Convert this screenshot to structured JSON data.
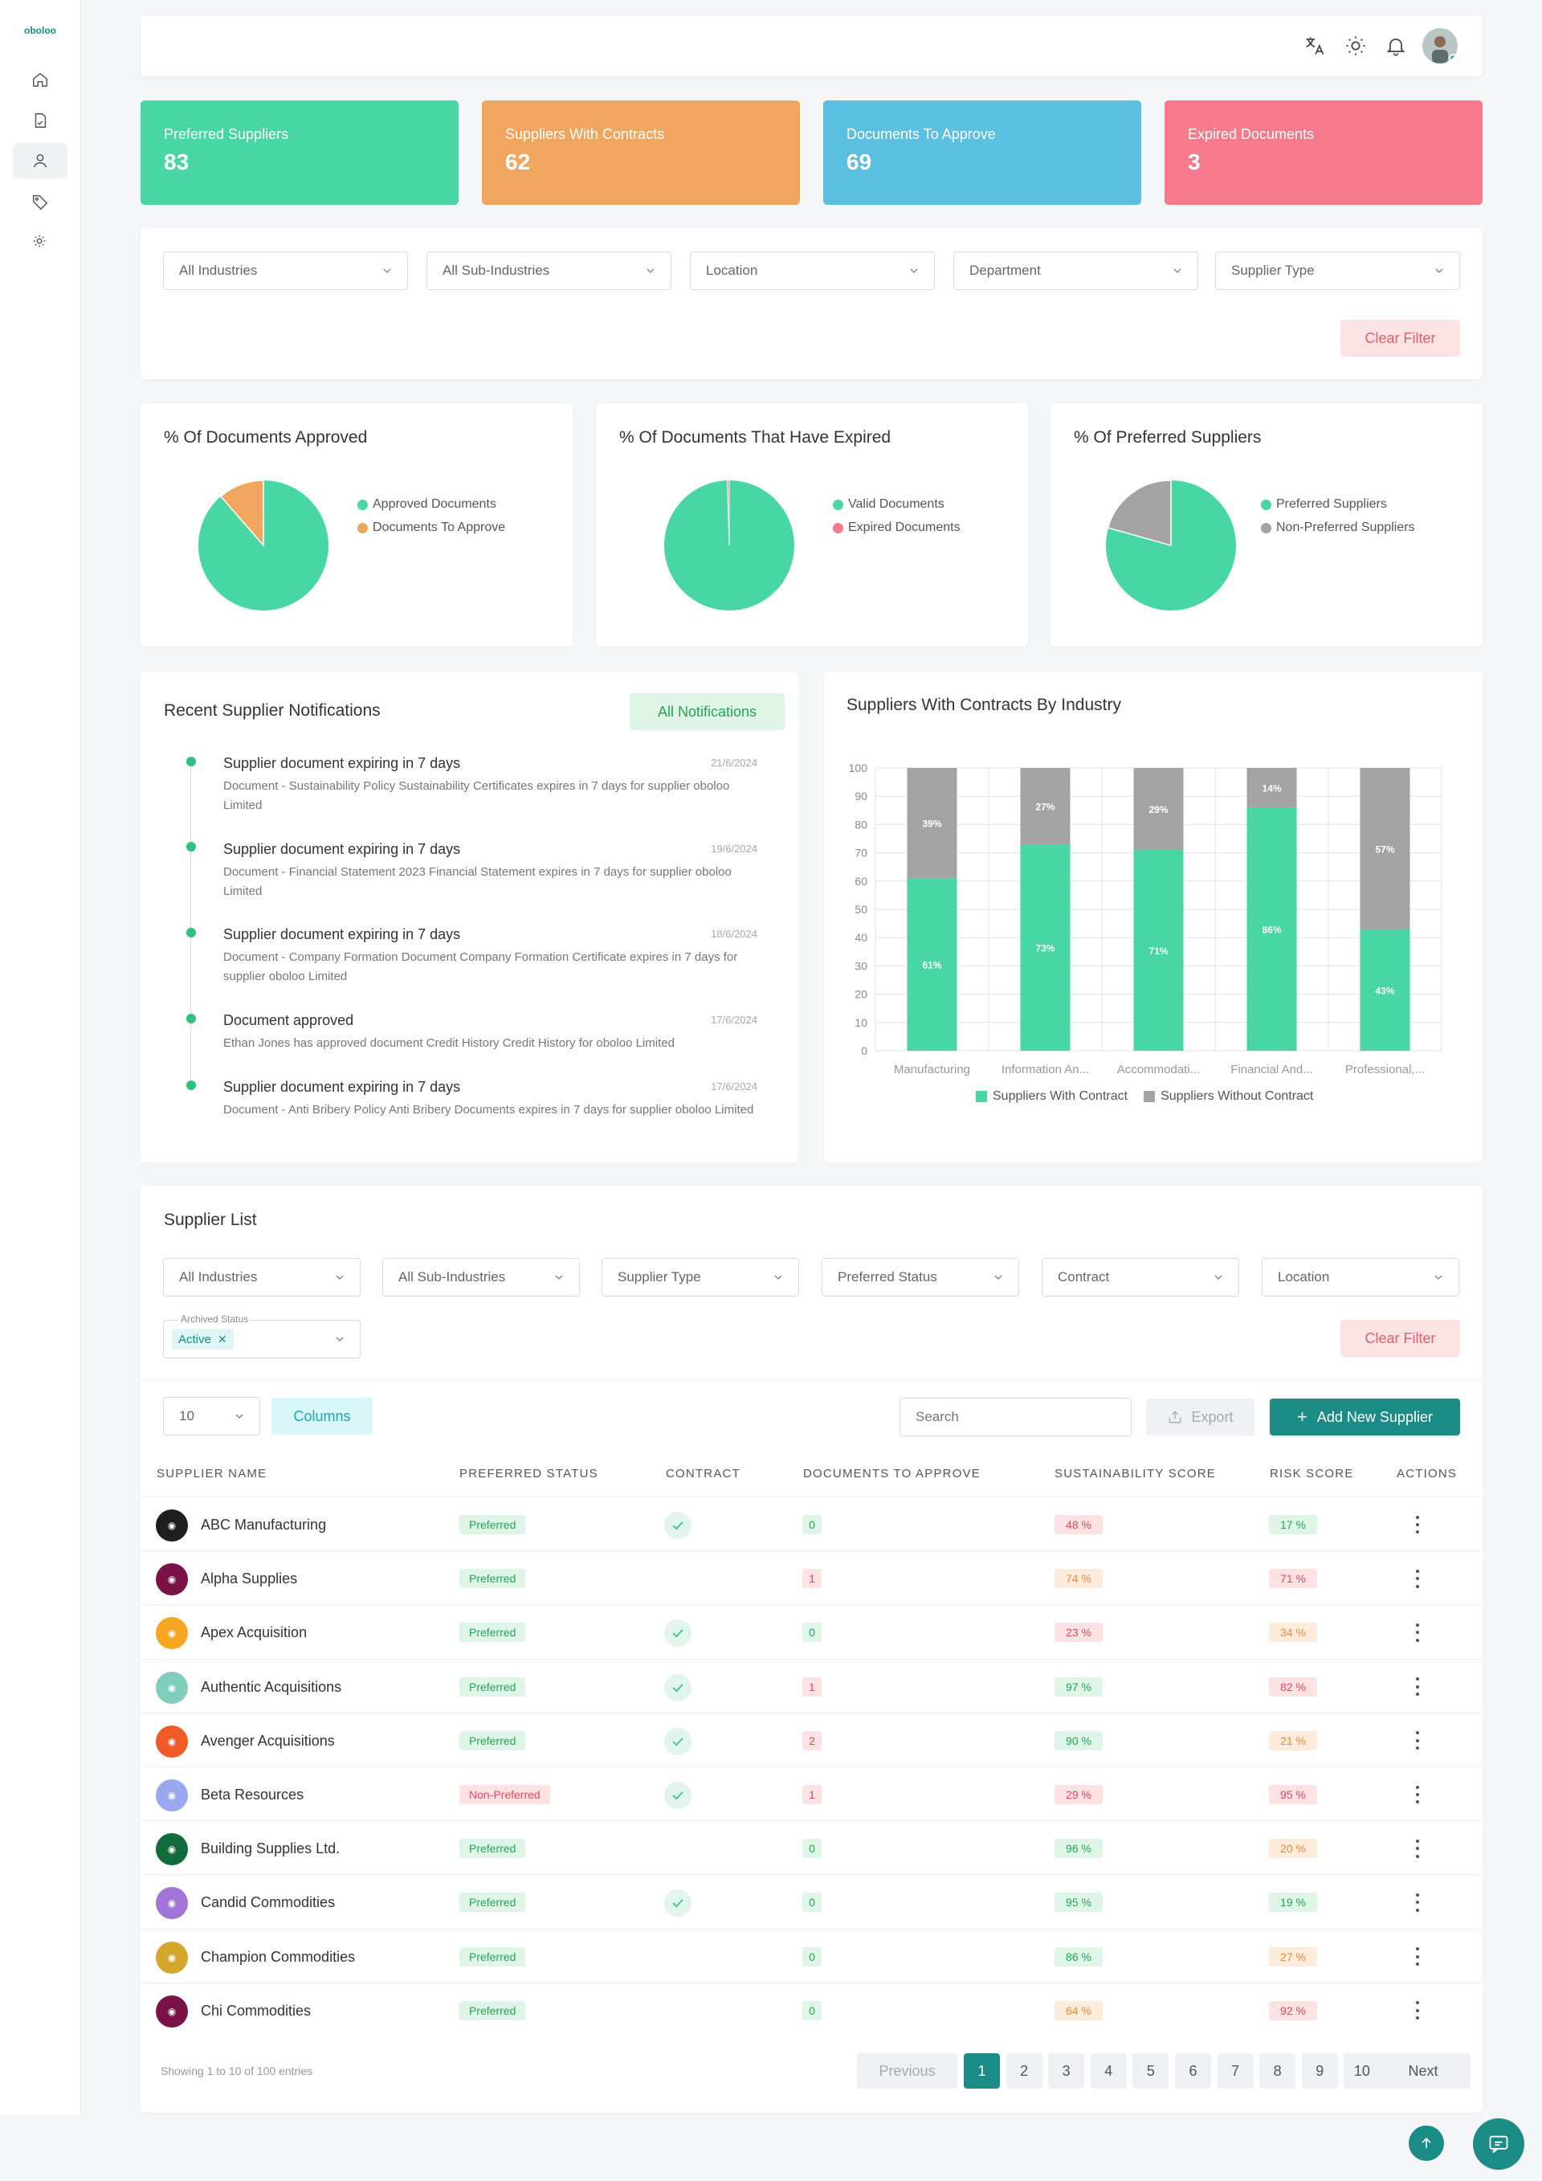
{
  "app": {
    "logo": "oboloo"
  },
  "stats": [
    {
      "label": "Preferred Suppliers",
      "value": "83",
      "color": "#48d6a4"
    },
    {
      "label": "Suppliers With Contracts",
      "value": "62",
      "color": "#f0a65e"
    },
    {
      "label": "Documents To Approve",
      "value": "69",
      "color": "#5bbfe0"
    },
    {
      "label": "Expired Documents",
      "value": "3",
      "color": "#f67a8c"
    }
  ],
  "filters": {
    "industries": "All Industries",
    "sub_industries": "All Sub-Industries",
    "location": "Location",
    "department": "Department",
    "supplier_type": "Supplier Type",
    "clear": "Clear Filter"
  },
  "pies": [
    {
      "title": "% Of Documents Approved",
      "legend": [
        "Approved Documents",
        "Documents To Approve"
      ],
      "colors": [
        "#48d6a4",
        "#f0a65e"
      ],
      "values": [
        89,
        11
      ]
    },
    {
      "title": "% Of Documents That Have Expired",
      "legend": [
        "Valid Documents",
        "Expired Documents"
      ],
      "colors": [
        "#48d6a4",
        "#f67a8c"
      ],
      "values": [
        99.5,
        0.5
      ]
    },
    {
      "title": "% Of Preferred Suppliers",
      "legend": [
        "Preferred Suppliers",
        "Non-Preferred Suppliers"
      ],
      "colors": [
        "#48d6a4",
        "#a3a3a3"
      ],
      "values": [
        83,
        17
      ]
    }
  ],
  "notifications": {
    "title": "Recent Supplier Notifications",
    "button": "All Notifications",
    "items": [
      {
        "title": "Supplier document expiring in 7 days",
        "date": "21/6/2024",
        "body": "Document - Sustainability Policy Sustainability Certificates expires in 7 days for supplier oboloo Limited"
      },
      {
        "title": "Supplier document expiring in 7 days",
        "date": "19/6/2024",
        "body": "Document - Financial Statement 2023 Financial Statement expires in 7 days for supplier oboloo Limited"
      },
      {
        "title": "Supplier document expiring in 7 days",
        "date": "18/6/2024",
        "body": "Document - Company Formation Document Company Formation Certificate expires in 7 days for supplier oboloo Limited"
      },
      {
        "title": "Document approved",
        "date": "17/6/2024",
        "body": "Ethan Jones has approved document Credit History Credit History for oboloo Limited"
      },
      {
        "title": "Supplier document expiring in 7 days",
        "date": "17/6/2024",
        "body": "Document - Anti Bribery Policy Anti Bribery Documents expires in 7 days for supplier oboloo Limited"
      }
    ]
  },
  "chart_data": {
    "type": "bar",
    "title": "Suppliers With Contracts By Industry",
    "stacked": true,
    "categories": [
      "Manufacturing",
      "Information An...",
      "Accommodati...",
      "Financial And...",
      "Professional,..."
    ],
    "series": [
      {
        "name": "Suppliers With Contract",
        "values": [
          61,
          73,
          71,
          86,
          43
        ],
        "labels": [
          "61%",
          "73%",
          "71%",
          "86%",
          "43%"
        ],
        "color": "#48d6a4"
      },
      {
        "name": "Suppliers Without Contract",
        "values": [
          39,
          27,
          29,
          14,
          57
        ],
        "labels": [
          "39%",
          "27%",
          "29%",
          "14%",
          "57%"
        ],
        "color": "#a3a3a3"
      }
    ],
    "ylim": [
      0,
      100
    ],
    "yticks": [
      "0",
      "10",
      "20",
      "30",
      "40",
      "50",
      "60",
      "70",
      "80",
      "90",
      "100"
    ],
    "grid": true,
    "legend_position": "bottom"
  },
  "supplier_list": {
    "title": "Supplier List",
    "filters": [
      "All Industries",
      "All Sub-Industries",
      "Supplier Type",
      "Preferred Status",
      "Contract",
      "Location"
    ],
    "archived_label": "Archived Status",
    "archived_value": "Active",
    "clear": "Clear Filter",
    "page_size": "10",
    "columns_btn": "Columns",
    "search_placeholder": "Search",
    "export": "Export",
    "add_new": "Add New Supplier",
    "headers": [
      "SUPPLIER NAME",
      "PREFERRED STATUS",
      "CONTRACT",
      "DOCUMENTS TO APPROVE",
      "SUSTAINABILITY SCORE",
      "RISK SCORE",
      "ACTIONS"
    ],
    "rows": [
      {
        "name": "ABC Manufacturing",
        "logo_color": "#1e1e1e",
        "status": "Preferred",
        "contract": true,
        "docs": "0",
        "sust": "48 %",
        "sust_c": "red",
        "risk": "17 %",
        "risk_c": "green"
      },
      {
        "name": "Alpha Supplies",
        "logo_color": "#7a1247",
        "status": "Preferred",
        "contract": false,
        "docs": "1",
        "sust": "74 %",
        "sust_c": "orange",
        "risk": "71 %",
        "risk_c": "red"
      },
      {
        "name": "Apex Acquisition",
        "logo_color": "#f5a623",
        "status": "Preferred",
        "contract": true,
        "docs": "0",
        "sust": "23 %",
        "sust_c": "red",
        "risk": "34 %",
        "risk_c": "orange"
      },
      {
        "name": "Authentic Acquisitions",
        "logo_color": "#7fcdbb",
        "status": "Preferred",
        "contract": true,
        "docs": "1",
        "sust": "97 %",
        "sust_c": "green",
        "risk": "82 %",
        "risk_c": "red"
      },
      {
        "name": "Avenger Acquisitions",
        "logo_color": "#f05a28",
        "status": "Preferred",
        "contract": true,
        "docs": "2",
        "sust": "90 %",
        "sust_c": "green",
        "risk": "21 %",
        "risk_c": "orange"
      },
      {
        "name": "Beta Resources",
        "logo_color": "#9aa8f0",
        "status": "Non-Preferred",
        "contract": true,
        "docs": "1",
        "sust": "29 %",
        "sust_c": "red",
        "risk": "95 %",
        "risk_c": "red"
      },
      {
        "name": "Building Supplies Ltd.",
        "logo_color": "#136b3c",
        "status": "Preferred",
        "contract": false,
        "docs": "0",
        "sust": "96 %",
        "sust_c": "green",
        "risk": "20 %",
        "risk_c": "orange"
      },
      {
        "name": "Candid Commodities",
        "logo_color": "#a174d8",
        "status": "Preferred",
        "contract": true,
        "docs": "0",
        "sust": "95 %",
        "sust_c": "green",
        "risk": "19 %",
        "risk_c": "green"
      },
      {
        "name": "Champion Commodities",
        "logo_color": "#d4a72c",
        "status": "Preferred",
        "contract": false,
        "docs": "0",
        "sust": "86 %",
        "sust_c": "green",
        "risk": "27 %",
        "risk_c": "orange"
      },
      {
        "name": "Chi Commodities",
        "logo_color": "#7a1247",
        "status": "Preferred",
        "contract": false,
        "docs": "0",
        "sust": "64 %",
        "sust_c": "orange",
        "risk": "92 %",
        "risk_c": "red"
      }
    ],
    "showing": "Showing 1 to 10 of 100 entries",
    "pagination": {
      "previous": "Previous",
      "next": "Next",
      "pages": [
        "1",
        "2",
        "3",
        "4",
        "5",
        "6",
        "7",
        "8",
        "9",
        "10"
      ],
      "current": "1"
    }
  }
}
